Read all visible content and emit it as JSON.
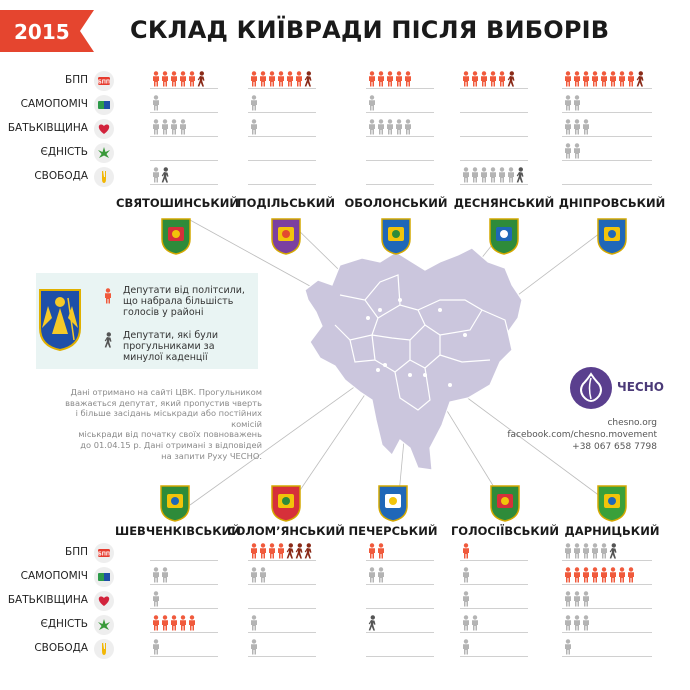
{
  "year": "2015",
  "title": "СКЛАД КИЇВРАДИ ПІСЛЯ ВИБОРІВ",
  "parties": [
    {
      "name": "БПП",
      "icon": "bpp-logo-icon",
      "color": "#e63b2e"
    },
    {
      "name": "САМОПОМІЧ",
      "icon": "samopomich-logo-icon",
      "color": "#2d9b4a"
    },
    {
      "name": "БАТЬКІВЩИНА",
      "icon": "heart-icon",
      "color": "#d2233c"
    },
    {
      "name": "ЄДНІСТЬ",
      "icon": "chestnut-leaf-icon",
      "color": "#3a9a3a"
    },
    {
      "name": "СВОБОДА",
      "icon": "tryzub-hand-icon",
      "color": "#f2b705"
    }
  ],
  "districts_top": [
    {
      "name": "СВЯТОШИНСЬКИЙ",
      "counts": [
        [
          5,
          1
        ],
        [
          1,
          0
        ],
        [
          4,
          0
        ],
        [
          0,
          0
        ],
        [
          1,
          1
        ]
      ],
      "leader": 0
    },
    {
      "name": "ПОДІЛЬСЬКИЙ",
      "counts": [
        [
          6,
          1
        ],
        [
          1,
          0
        ],
        [
          1,
          0
        ],
        [
          0,
          0
        ],
        [
          0,
          0
        ]
      ],
      "leader": 0
    },
    {
      "name": "ОБОЛОНСЬКИЙ",
      "counts": [
        [
          5,
          0
        ],
        [
          1,
          0
        ],
        [
          5,
          0
        ],
        [
          0,
          0
        ],
        [
          0,
          0
        ]
      ],
      "leader": 0
    },
    {
      "name": "ДЕСНЯНСЬКИЙ",
      "counts": [
        [
          5,
          1
        ],
        [
          0,
          0
        ],
        [
          0,
          0
        ],
        [
          0,
          0
        ],
        [
          6,
          1
        ]
      ],
      "leader": 0
    },
    {
      "name": "ДНІПРОВСЬКИЙ",
      "counts": [
        [
          8,
          1
        ],
        [
          2,
          0
        ],
        [
          3,
          0
        ],
        [
          2,
          0
        ],
        [
          0,
          0
        ]
      ],
      "leader": 0
    }
  ],
  "districts_bottom": [
    {
      "name": "ШЕВЧЕНКІВСЬКИЙ",
      "counts": [
        [
          0,
          0
        ],
        [
          2,
          0
        ],
        [
          1,
          0
        ],
        [
          5,
          0
        ],
        [
          1,
          0
        ]
      ],
      "leader": 3
    },
    {
      "name": "СОЛОМ’ЯНСЬКИЙ",
      "counts": [
        [
          4,
          3
        ],
        [
          2,
          0
        ],
        [
          0,
          0
        ],
        [
          1,
          0
        ],
        [
          1,
          0
        ]
      ],
      "leader": 0
    },
    {
      "name": "ПЕЧЕРСЬКИЙ",
      "counts": [
        [
          2,
          0
        ],
        [
          2,
          0
        ],
        [
          0,
          0
        ],
        [
          0,
          1
        ],
        [
          0,
          0
        ]
      ],
      "leader": 0
    },
    {
      "name": "ГОЛОСІЇВСЬКИЙ",
      "counts": [
        [
          1,
          0
        ],
        [
          1,
          0
        ],
        [
          1,
          0
        ],
        [
          2,
          0
        ],
        [
          1,
          0
        ]
      ],
      "leader": 0
    },
    {
      "name": "ДАРНИЦЬКИЙ",
      "counts": [
        [
          5,
          1
        ],
        [
          8,
          0
        ],
        [
          3,
          0
        ],
        [
          3,
          0
        ],
        [
          1,
          0
        ]
      ],
      "leader": 1
    }
  ],
  "legend": {
    "leader_text_1": "Депутати від політсили,",
    "leader_text_2": "що набрала більшість",
    "leader_text_3": "голосів у районі",
    "truant_text_1": "Депутати, які були",
    "truant_text_2": "прогульниками за",
    "truant_text_3": "минулої каденції"
  },
  "note_lines": [
    "Дані отримано на сайті ЦВК. Прогульником",
    "вважається депутат, який пропустив чверть",
    "і більше засідань міськради або постійних комісій",
    "міськради від початку своїх повноважень",
    "до 01.04.15 р. Дані отримані з відповідей",
    "на запити Руху ЧЕСНО."
  ],
  "brand": {
    "name": "ЧЕСНО",
    "site": "chesno.org",
    "facebook": "facebook.com/chesno.movement",
    "phone": "+38 067 658 7798"
  },
  "colors": {
    "accent": "#e5452f",
    "leader": "#f05a3c",
    "truant": "#555555",
    "other": "#b4b4b4",
    "map": "#cbc6dd",
    "legend_bg": "#e9f4f3",
    "brand": "#5a3f8e"
  }
}
